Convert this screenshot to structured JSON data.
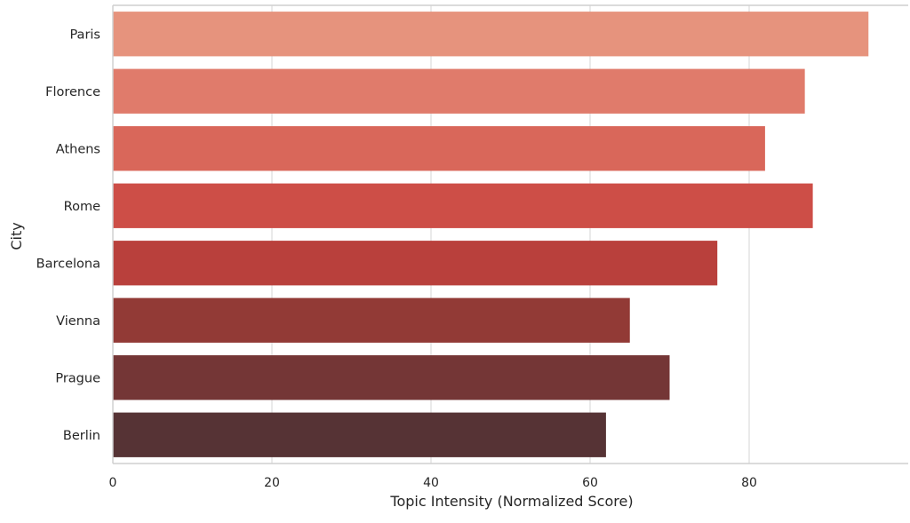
{
  "chart_data": {
    "type": "bar",
    "orientation": "horizontal",
    "categories": [
      "Paris",
      "Florence",
      "Athens",
      "Rome",
      "Barcelona",
      "Vienna",
      "Prague",
      "Berlin"
    ],
    "values": [
      95,
      87,
      82,
      88,
      76,
      65,
      70,
      62
    ],
    "colors": [
      "#e6937d",
      "#e07b6b",
      "#d9675a",
      "#cd4e47",
      "#b9403c",
      "#923a36",
      "#743636",
      "#563335"
    ],
    "xlabel": "Topic Intensity (Normalized Score)",
    "ylabel": "City",
    "xlim": [
      0,
      100
    ],
    "xticks": [
      0,
      20,
      40,
      60,
      80
    ],
    "grid": "x"
  }
}
